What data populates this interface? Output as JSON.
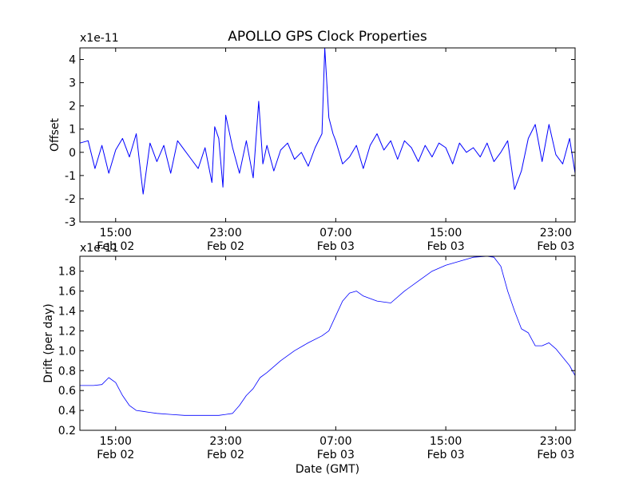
{
  "title": "APOLLO GPS Clock Properties",
  "xlabel": "Date (GMT)",
  "colors": {
    "line": "#0000ff",
    "axes": "#000000",
    "background": "#ffffff"
  },
  "x_ticks": [
    {
      "time": "15:00",
      "date": "Feb 02",
      "t": 0
    },
    {
      "time": "23:00",
      "date": "Feb 02",
      "t": 8
    },
    {
      "time": "07:00",
      "date": "Feb 03",
      "t": 16
    },
    {
      "time": "15:00",
      "date": "Feb 03",
      "t": 24
    },
    {
      "time": "23:00",
      "date": "Feb 03",
      "t": 32
    }
  ],
  "chart_data": [
    {
      "type": "line",
      "ylabel": "Offset",
      "yscale_label": "x1e-11",
      "ylim": [
        -3,
        4.5
      ],
      "yticks": [
        -3,
        -2,
        -1,
        0,
        1,
        2,
        3,
        4
      ],
      "xlim_hours_from_15:00_Feb_02": [
        -2.6,
        33.4
      ],
      "series": [
        {
          "color": "#0000ff",
          "x": [
            -2.6,
            -2.0,
            -1.5,
            -1.0,
            -0.5,
            0.0,
            0.5,
            1.0,
            1.5,
            2.0,
            2.5,
            3.0,
            3.5,
            4.0,
            4.5,
            5.0,
            5.5,
            6.0,
            6.5,
            7.0,
            7.2,
            7.5,
            7.8,
            8.0,
            8.5,
            9.0,
            9.5,
            10.0,
            10.4,
            10.7,
            11.0,
            11.5,
            12.0,
            12.5,
            13.0,
            13.5,
            14.0,
            14.5,
            15.0,
            15.2,
            15.5,
            15.8,
            16.0,
            16.5,
            17.0,
            17.5,
            18.0,
            18.5,
            19.0,
            19.5,
            20.0,
            20.5,
            21.0,
            21.5,
            22.0,
            22.5,
            23.0,
            23.5,
            24.0,
            24.5,
            25.0,
            25.5,
            26.0,
            26.5,
            27.0,
            27.5,
            28.0,
            28.5,
            29.0,
            29.5,
            30.0,
            30.5,
            31.0,
            31.5,
            32.0,
            32.5,
            33.0,
            33.4
          ],
          "y": [
            0.4,
            0.5,
            -0.7,
            0.3,
            -0.9,
            0.1,
            0.6,
            -0.2,
            0.8,
            -1.8,
            0.4,
            -0.4,
            0.3,
            -0.9,
            0.5,
            0.1,
            -0.3,
            -0.7,
            0.2,
            -1.3,
            1.1,
            0.6,
            -1.5,
            1.6,
            0.2,
            -0.9,
            0.5,
            -1.1,
            2.2,
            -0.5,
            0.3,
            -0.8,
            0.1,
            0.4,
            -0.3,
            0.0,
            -0.6,
            0.2,
            0.8,
            4.5,
            1.5,
            0.8,
            0.5,
            -0.5,
            -0.2,
            0.3,
            -0.7,
            0.3,
            0.8,
            0.1,
            0.5,
            -0.3,
            0.5,
            0.2,
            -0.4,
            0.3,
            -0.2,
            0.4,
            0.2,
            -0.5,
            0.4,
            0.0,
            0.2,
            -0.2,
            0.4,
            -0.4,
            0.0,
            0.5,
            -1.6,
            -0.8,
            0.6,
            1.2,
            -0.4,
            1.2,
            -0.1,
            -0.5,
            0.6,
            -0.9
          ]
        }
      ]
    },
    {
      "type": "line",
      "ylabel": "Drift (per day)",
      "yscale_label": "x1e-11",
      "ylim": [
        0.2,
        1.95
      ],
      "yticks": [
        0.2,
        0.4,
        0.6,
        0.8,
        1.0,
        1.2,
        1.4,
        1.6,
        1.8
      ],
      "xlim_hours_from_15:00_Feb_02": [
        -2.6,
        33.4
      ],
      "series": [
        {
          "color": "#0000ff",
          "x": [
            -2.6,
            -1.6,
            -1.0,
            -0.5,
            0.0,
            0.5,
            1.0,
            1.5,
            2.0,
            2.5,
            3.0,
            4.0,
            5.0,
            6.0,
            7.0,
            7.5,
            8.0,
            8.5,
            9.0,
            9.5,
            10.0,
            10.5,
            11.0,
            12.0,
            13.0,
            14.0,
            15.0,
            15.5,
            16.0,
            16.5,
            17.0,
            17.5,
            18.0,
            19.0,
            20.0,
            21.0,
            22.0,
            23.0,
            24.0,
            25.0,
            26.0,
            27.0,
            27.5,
            28.0,
            28.5,
            29.0,
            29.5,
            30.0,
            30.5,
            31.0,
            31.5,
            32.0,
            33.0,
            33.4
          ],
          "y": [
            0.65,
            0.65,
            0.66,
            0.73,
            0.68,
            0.55,
            0.45,
            0.4,
            0.39,
            0.38,
            0.37,
            0.36,
            0.35,
            0.35,
            0.35,
            0.35,
            0.36,
            0.37,
            0.45,
            0.55,
            0.62,
            0.73,
            0.78,
            0.9,
            1.0,
            1.08,
            1.15,
            1.2,
            1.35,
            1.5,
            1.58,
            1.6,
            1.55,
            1.5,
            1.48,
            1.6,
            1.7,
            1.8,
            1.86,
            1.9,
            1.94,
            1.95,
            1.94,
            1.85,
            1.6,
            1.4,
            1.22,
            1.18,
            1.05,
            1.05,
            1.08,
            1.02,
            0.85,
            0.75
          ]
        }
      ]
    }
  ]
}
